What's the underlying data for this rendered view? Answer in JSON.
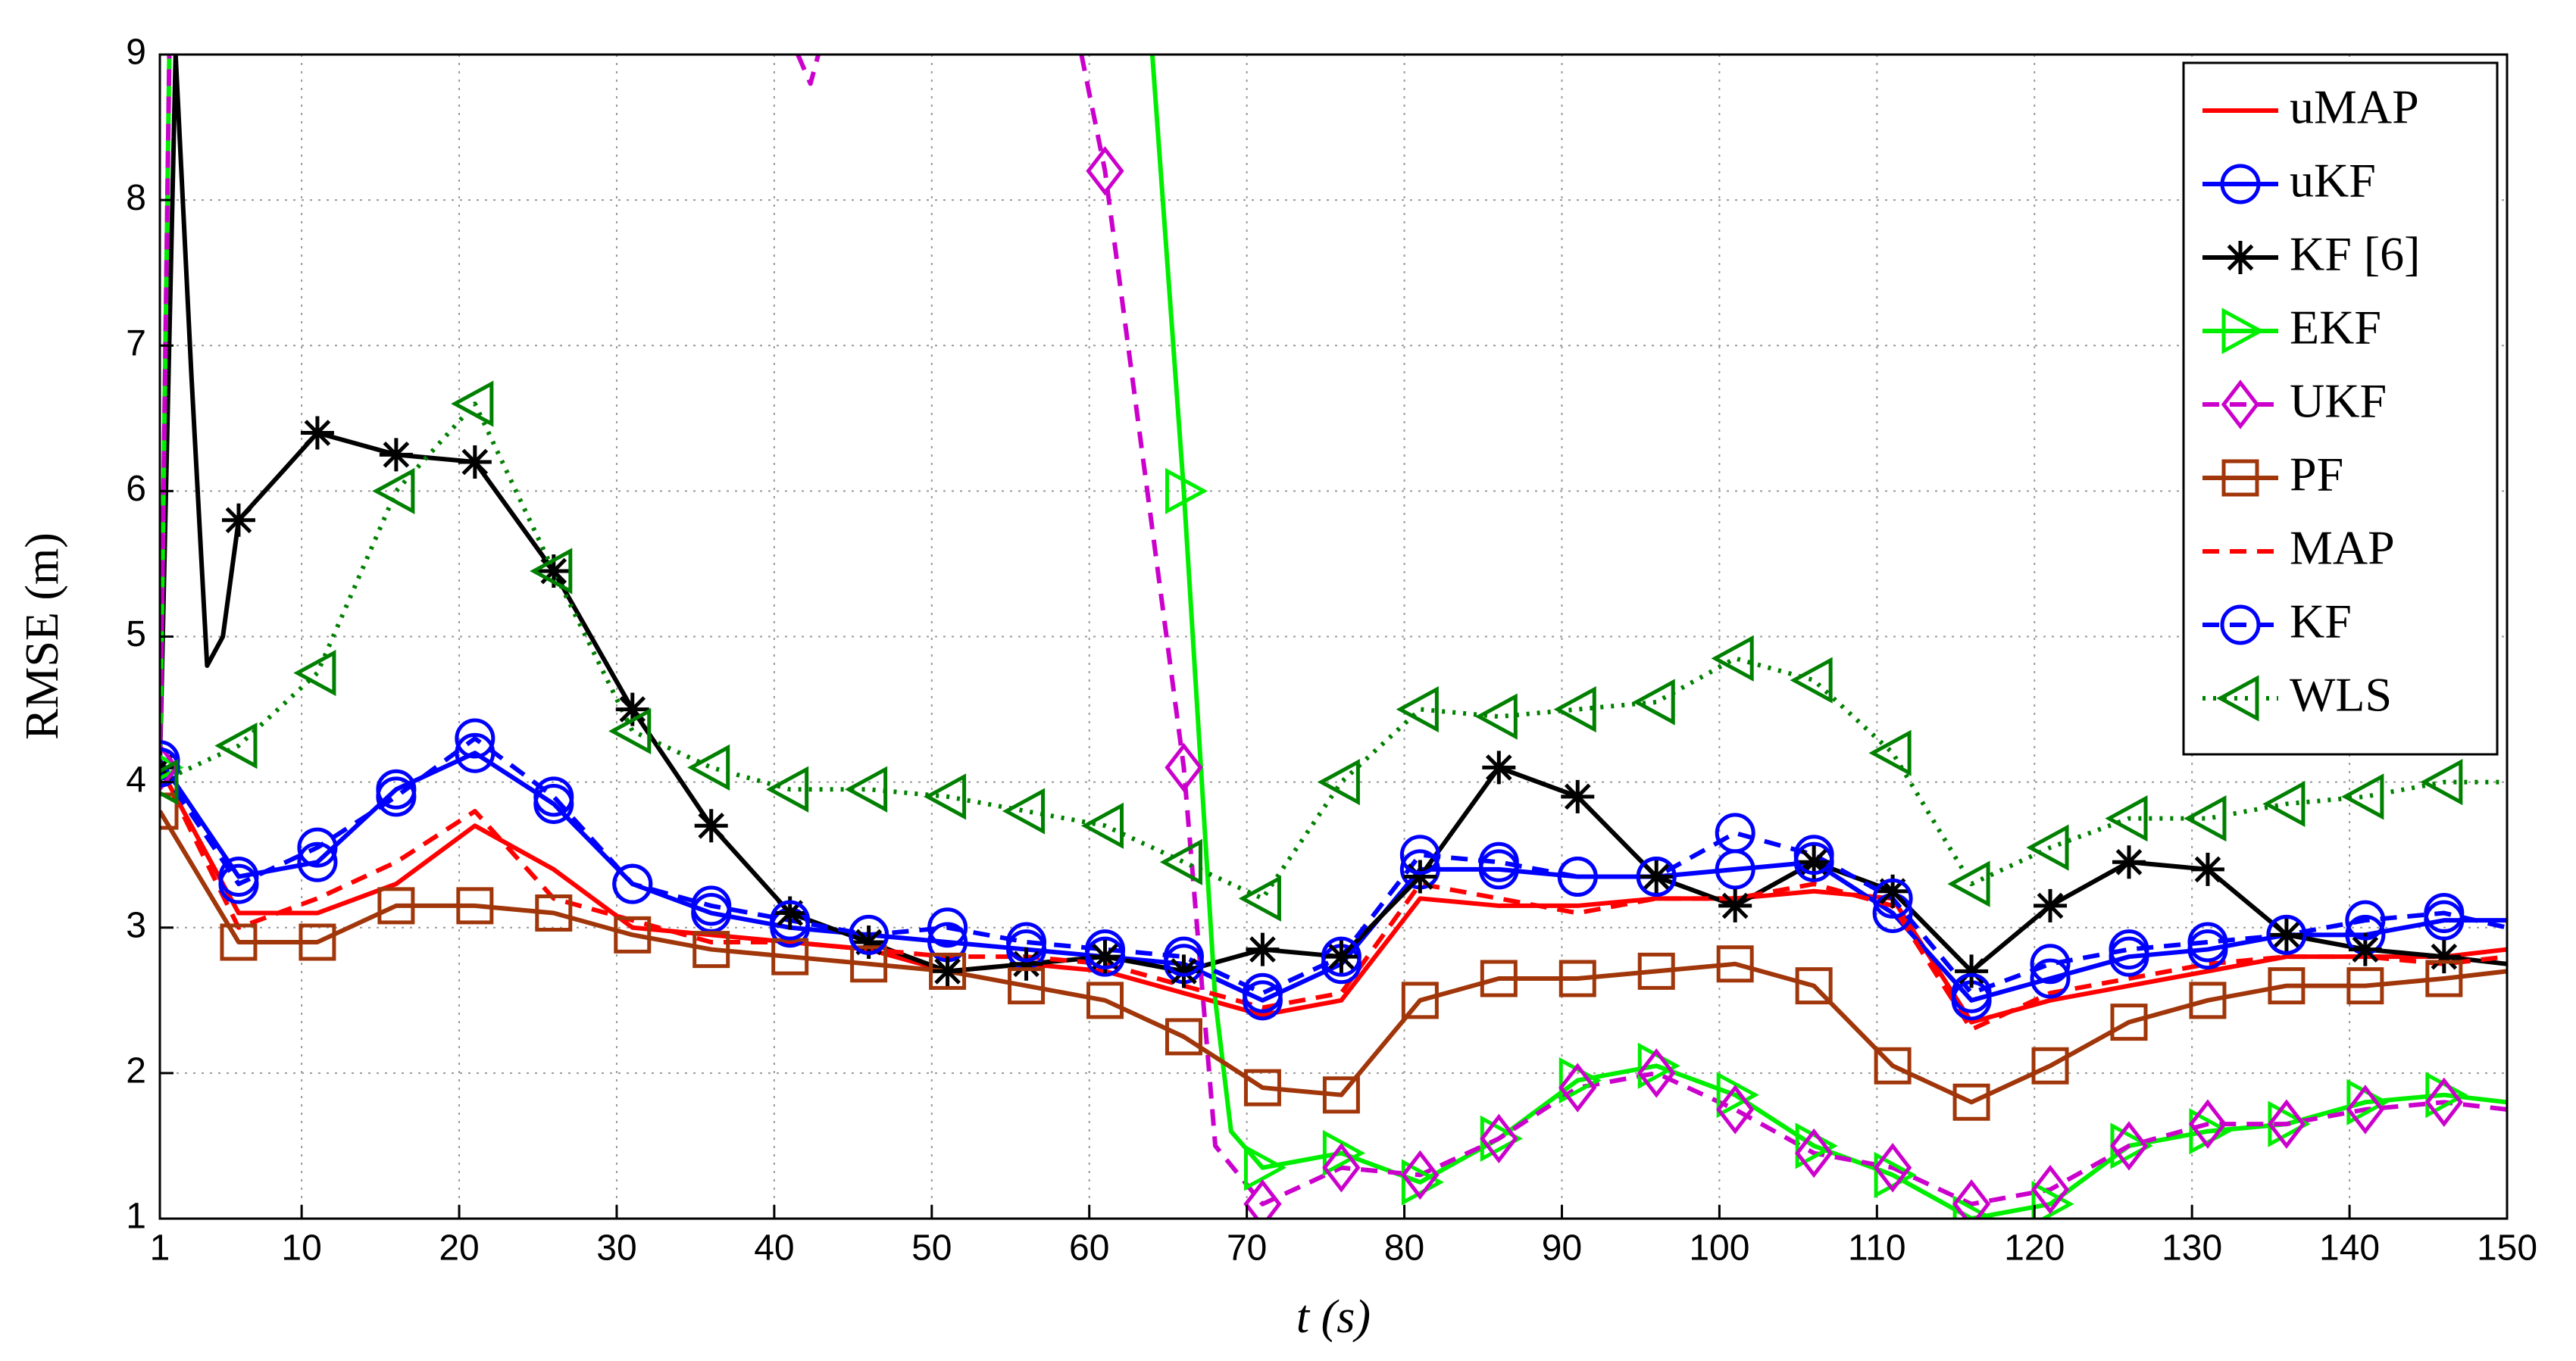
{
  "chart_data": {
    "type": "line",
    "xlabel": "t (s)",
    "ylabel": "RMSE (m)",
    "x": [
      1,
      6,
      11,
      16,
      21,
      26,
      31,
      36,
      41,
      46,
      51,
      56,
      61,
      66,
      71,
      76,
      81,
      86,
      91,
      96,
      101,
      106,
      111,
      116,
      121,
      126,
      131,
      136,
      141,
      146,
      150
    ],
    "xlim": [
      1,
      150
    ],
    "xticks": [
      1,
      10,
      20,
      30,
      40,
      50,
      60,
      70,
      80,
      90,
      100,
      110,
      120,
      130,
      140,
      150
    ],
    "ylim": [
      1,
      9
    ],
    "yticks": [
      1,
      2,
      3,
      4,
      5,
      6,
      7,
      8,
      9
    ],
    "grid": true,
    "legend": "upper right",
    "series": [
      {
        "name": "uMAP",
        "color": "#ff0000",
        "linestyle": "solid",
        "marker": "none",
        "values": [
          4.1,
          3.1,
          3.1,
          3.3,
          3.7,
          3.4,
          3.0,
          2.95,
          2.9,
          2.85,
          2.7,
          2.75,
          2.7,
          2.55,
          2.4,
          2.5,
          3.2,
          3.15,
          3.15,
          3.2,
          3.2,
          3.25,
          3.2,
          2.35,
          2.5,
          2.6,
          2.7,
          2.8,
          2.8,
          2.8,
          2.85
        ]
      },
      {
        "name": "uKF",
        "color": "#0000ff",
        "linestyle": "solid",
        "marker": "circle",
        "values": [
          4.15,
          3.35,
          3.45,
          3.95,
          4.2,
          3.85,
          3.3,
          3.1,
          3.0,
          2.95,
          2.9,
          2.85,
          2.8,
          2.75,
          2.5,
          2.75,
          3.4,
          3.4,
          3.35,
          3.35,
          3.4,
          3.45,
          3.1,
          2.5,
          2.65,
          2.8,
          2.85,
          2.95,
          2.95,
          3.05,
          3.05
        ]
      },
      {
        "name": "KF [6]",
        "color": "#000000",
        "linestyle": "solid",
        "marker": "star",
        "x": [
          1,
          2,
          3,
          4,
          5,
          6,
          11,
          16,
          21,
          26,
          31,
          36,
          41,
          46,
          51,
          56,
          61,
          66,
          71,
          76,
          81,
          86,
          91,
          96,
          101,
          106,
          111,
          116,
          121,
          126,
          131,
          136,
          141,
          146,
          150
        ],
        "values": [
          4.1,
          9,
          6.8,
          4.8,
          5.0,
          5.8,
          6.4,
          6.25,
          6.2,
          5.45,
          4.5,
          3.7,
          3.1,
          2.9,
          2.7,
          2.75,
          2.8,
          2.7,
          2.85,
          2.8,
          3.35,
          4.1,
          3.9,
          3.35,
          3.15,
          3.45,
          3.25,
          2.7,
          3.15,
          3.45,
          3.4,
          2.95,
          2.85,
          2.8,
          2.75
        ]
      },
      {
        "name": "EKF",
        "color": "#00ee00",
        "linestyle": "solid",
        "marker": "triangle-right",
        "x": [
          1,
          1.6,
          2,
          64,
          66,
          68,
          69,
          71,
          76,
          81,
          86,
          91,
          96,
          101,
          106,
          111,
          116,
          121,
          126,
          131,
          136,
          141,
          146,
          150
        ],
        "values": [
          4.1,
          9,
          null,
          9,
          6.0,
          2.5,
          1.6,
          1.35,
          1.45,
          1.25,
          1.55,
          1.95,
          2.05,
          1.85,
          1.5,
          1.3,
          1.0,
          1.1,
          1.5,
          1.6,
          1.65,
          1.8,
          1.85,
          1.8
        ]
      },
      {
        "name": "UKF",
        "color": "#cc00cc",
        "linestyle": "dash",
        "marker": "diamond",
        "x": [
          1,
          1.6,
          2,
          41.5,
          42.3,
          42.8,
          44,
          59.5,
          61,
          66,
          68,
          71,
          76,
          81,
          86,
          91,
          96,
          101,
          106,
          111,
          116,
          121,
          126,
          131,
          136,
          141,
          146,
          150
        ],
        "values": [
          4.1,
          9,
          null,
          9,
          8.8,
          9,
          null,
          9,
          8.2,
          4.1,
          1.5,
          1.1,
          1.35,
          1.3,
          1.55,
          1.9,
          2.0,
          1.75,
          1.45,
          1.35,
          1.1,
          1.2,
          1.5,
          1.65,
          1.65,
          1.75,
          1.8,
          1.75
        ]
      },
      {
        "name": "PF",
        "color": "#a0360a",
        "linestyle": "solid",
        "marker": "square",
        "values": [
          3.8,
          2.9,
          2.9,
          3.15,
          3.15,
          3.1,
          2.95,
          2.85,
          2.8,
          2.75,
          2.7,
          2.6,
          2.5,
          2.25,
          1.9,
          1.85,
          2.5,
          2.65,
          2.65,
          2.7,
          2.75,
          2.6,
          2.05,
          1.8,
          2.05,
          2.35,
          2.5,
          2.6,
          2.6,
          2.65,
          2.7
        ]
      },
      {
        "name": "MAP",
        "color": "#ff0000",
        "linestyle": "dash",
        "marker": "none",
        "values": [
          4.1,
          3.0,
          3.2,
          3.45,
          3.8,
          3.2,
          3.05,
          2.9,
          2.9,
          2.85,
          2.8,
          2.8,
          2.75,
          2.6,
          2.45,
          2.55,
          3.3,
          3.2,
          3.1,
          3.2,
          3.2,
          3.3,
          3.15,
          2.3,
          2.55,
          2.65,
          2.75,
          2.8,
          2.8,
          2.75,
          2.8
        ]
      },
      {
        "name": "KF",
        "color": "#0000ff",
        "linestyle": "dash",
        "marker": "circle",
        "values": [
          4.1,
          3.3,
          3.55,
          3.9,
          4.3,
          3.9,
          3.3,
          3.15,
          3.05,
          2.95,
          3.0,
          2.9,
          2.85,
          2.8,
          2.55,
          2.8,
          3.5,
          3.45,
          3.35,
          3.35,
          3.65,
          3.5,
          3.2,
          2.55,
          2.75,
          2.85,
          2.9,
          2.95,
          3.05,
          3.1,
          3.0
        ]
      },
      {
        "name": "WLS",
        "color": "#008000",
        "linestyle": "dot",
        "marker": "triangle-left",
        "values": [
          4.0,
          4.25,
          4.75,
          6.0,
          6.6,
          5.45,
          4.35,
          4.1,
          3.95,
          3.95,
          3.9,
          3.8,
          3.7,
          3.45,
          3.2,
          4.0,
          4.5,
          4.45,
          4.5,
          4.55,
          4.85,
          4.7,
          4.2,
          3.3,
          3.55,
          3.75,
          3.75,
          3.85,
          3.9,
          4.0,
          4.0
        ]
      }
    ]
  }
}
